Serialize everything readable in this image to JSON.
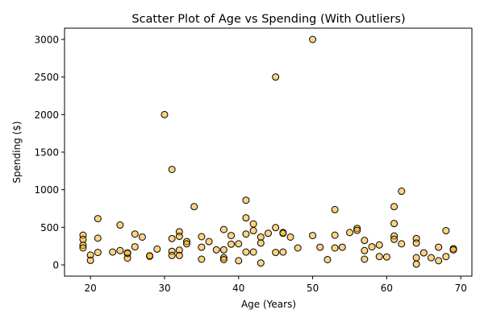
{
  "chart_data": {
    "type": "scatter",
    "title": "Scatter Plot of Age vs Spending (With Outliers)",
    "xlabel": "Age (Years)",
    "ylabel": "Spending ($)",
    "xlim": [
      16.5,
      71.5
    ],
    "ylim": [
      -150,
      3150
    ],
    "xticks": [
      20,
      30,
      40,
      50,
      60,
      70
    ],
    "yticks": [
      0,
      500,
      1000,
      1500,
      2000,
      2500,
      3000
    ],
    "grid": false,
    "marker_color": "#FFA500",
    "marker_edge_color": "#000000",
    "points": [
      [
        19,
        395
      ],
      [
        19,
        340
      ],
      [
        19,
        260
      ],
      [
        19,
        225
      ],
      [
        20,
        130
      ],
      [
        20,
        60
      ],
      [
        21,
        615
      ],
      [
        21,
        355
      ],
      [
        21,
        165
      ],
      [
        23,
        170
      ],
      [
        24,
        530
      ],
      [
        24,
        190
      ],
      [
        25,
        150
      ],
      [
        25,
        90
      ],
      [
        25,
        160
      ],
      [
        26,
        410
      ],
      [
        26,
        240
      ],
      [
        27,
        370
      ],
      [
        28,
        115
      ],
      [
        28,
        120
      ],
      [
        29,
        210
      ],
      [
        30,
        2000
      ],
      [
        31,
        1270
      ],
      [
        31,
        350
      ],
      [
        31,
        180
      ],
      [
        31,
        125
      ],
      [
        32,
        440
      ],
      [
        32,
        380
      ],
      [
        32,
        195
      ],
      [
        32,
        125
      ],
      [
        33,
        310
      ],
      [
        33,
        280
      ],
      [
        34,
        775
      ],
      [
        35,
        375
      ],
      [
        35,
        235
      ],
      [
        35,
        75
      ],
      [
        36,
        310
      ],
      [
        37,
        200
      ],
      [
        38,
        470
      ],
      [
        38,
        200
      ],
      [
        38,
        95
      ],
      [
        38,
        70
      ],
      [
        39,
        390
      ],
      [
        39,
        275
      ],
      [
        40,
        280
      ],
      [
        40,
        55
      ],
      [
        41,
        860
      ],
      [
        41,
        625
      ],
      [
        41,
        410
      ],
      [
        41,
        170
      ],
      [
        42,
        545
      ],
      [
        42,
        455
      ],
      [
        42,
        170
      ],
      [
        43,
        370
      ],
      [
        43,
        290
      ],
      [
        43,
        25
      ],
      [
        44,
        420
      ],
      [
        45,
        2500
      ],
      [
        45,
        495
      ],
      [
        45,
        165
      ],
      [
        46,
        430
      ],
      [
        46,
        420
      ],
      [
        46,
        170
      ],
      [
        47,
        370
      ],
      [
        48,
        225
      ],
      [
        50,
        3000
      ],
      [
        50,
        390
      ],
      [
        51,
        235
      ],
      [
        52,
        70
      ],
      [
        53,
        735
      ],
      [
        53,
        395
      ],
      [
        53,
        225
      ],
      [
        54,
        235
      ],
      [
        55,
        430
      ],
      [
        56,
        485
      ],
      [
        56,
        460
      ],
      [
        57,
        325
      ],
      [
        57,
        190
      ],
      [
        57,
        75
      ],
      [
        58,
        240
      ],
      [
        59,
        265
      ],
      [
        59,
        110
      ],
      [
        60,
        105
      ],
      [
        61,
        775
      ],
      [
        61,
        550
      ],
      [
        61,
        385
      ],
      [
        61,
        340
      ],
      [
        62,
        980
      ],
      [
        62,
        280
      ],
      [
        64,
        350
      ],
      [
        64,
        290
      ],
      [
        64,
        95
      ],
      [
        64,
        10
      ],
      [
        65,
        160
      ],
      [
        66,
        95
      ],
      [
        67,
        235
      ],
      [
        67,
        55
      ],
      [
        68,
        455
      ],
      [
        68,
        110
      ],
      [
        69,
        215
      ],
      [
        69,
        200
      ]
    ]
  }
}
